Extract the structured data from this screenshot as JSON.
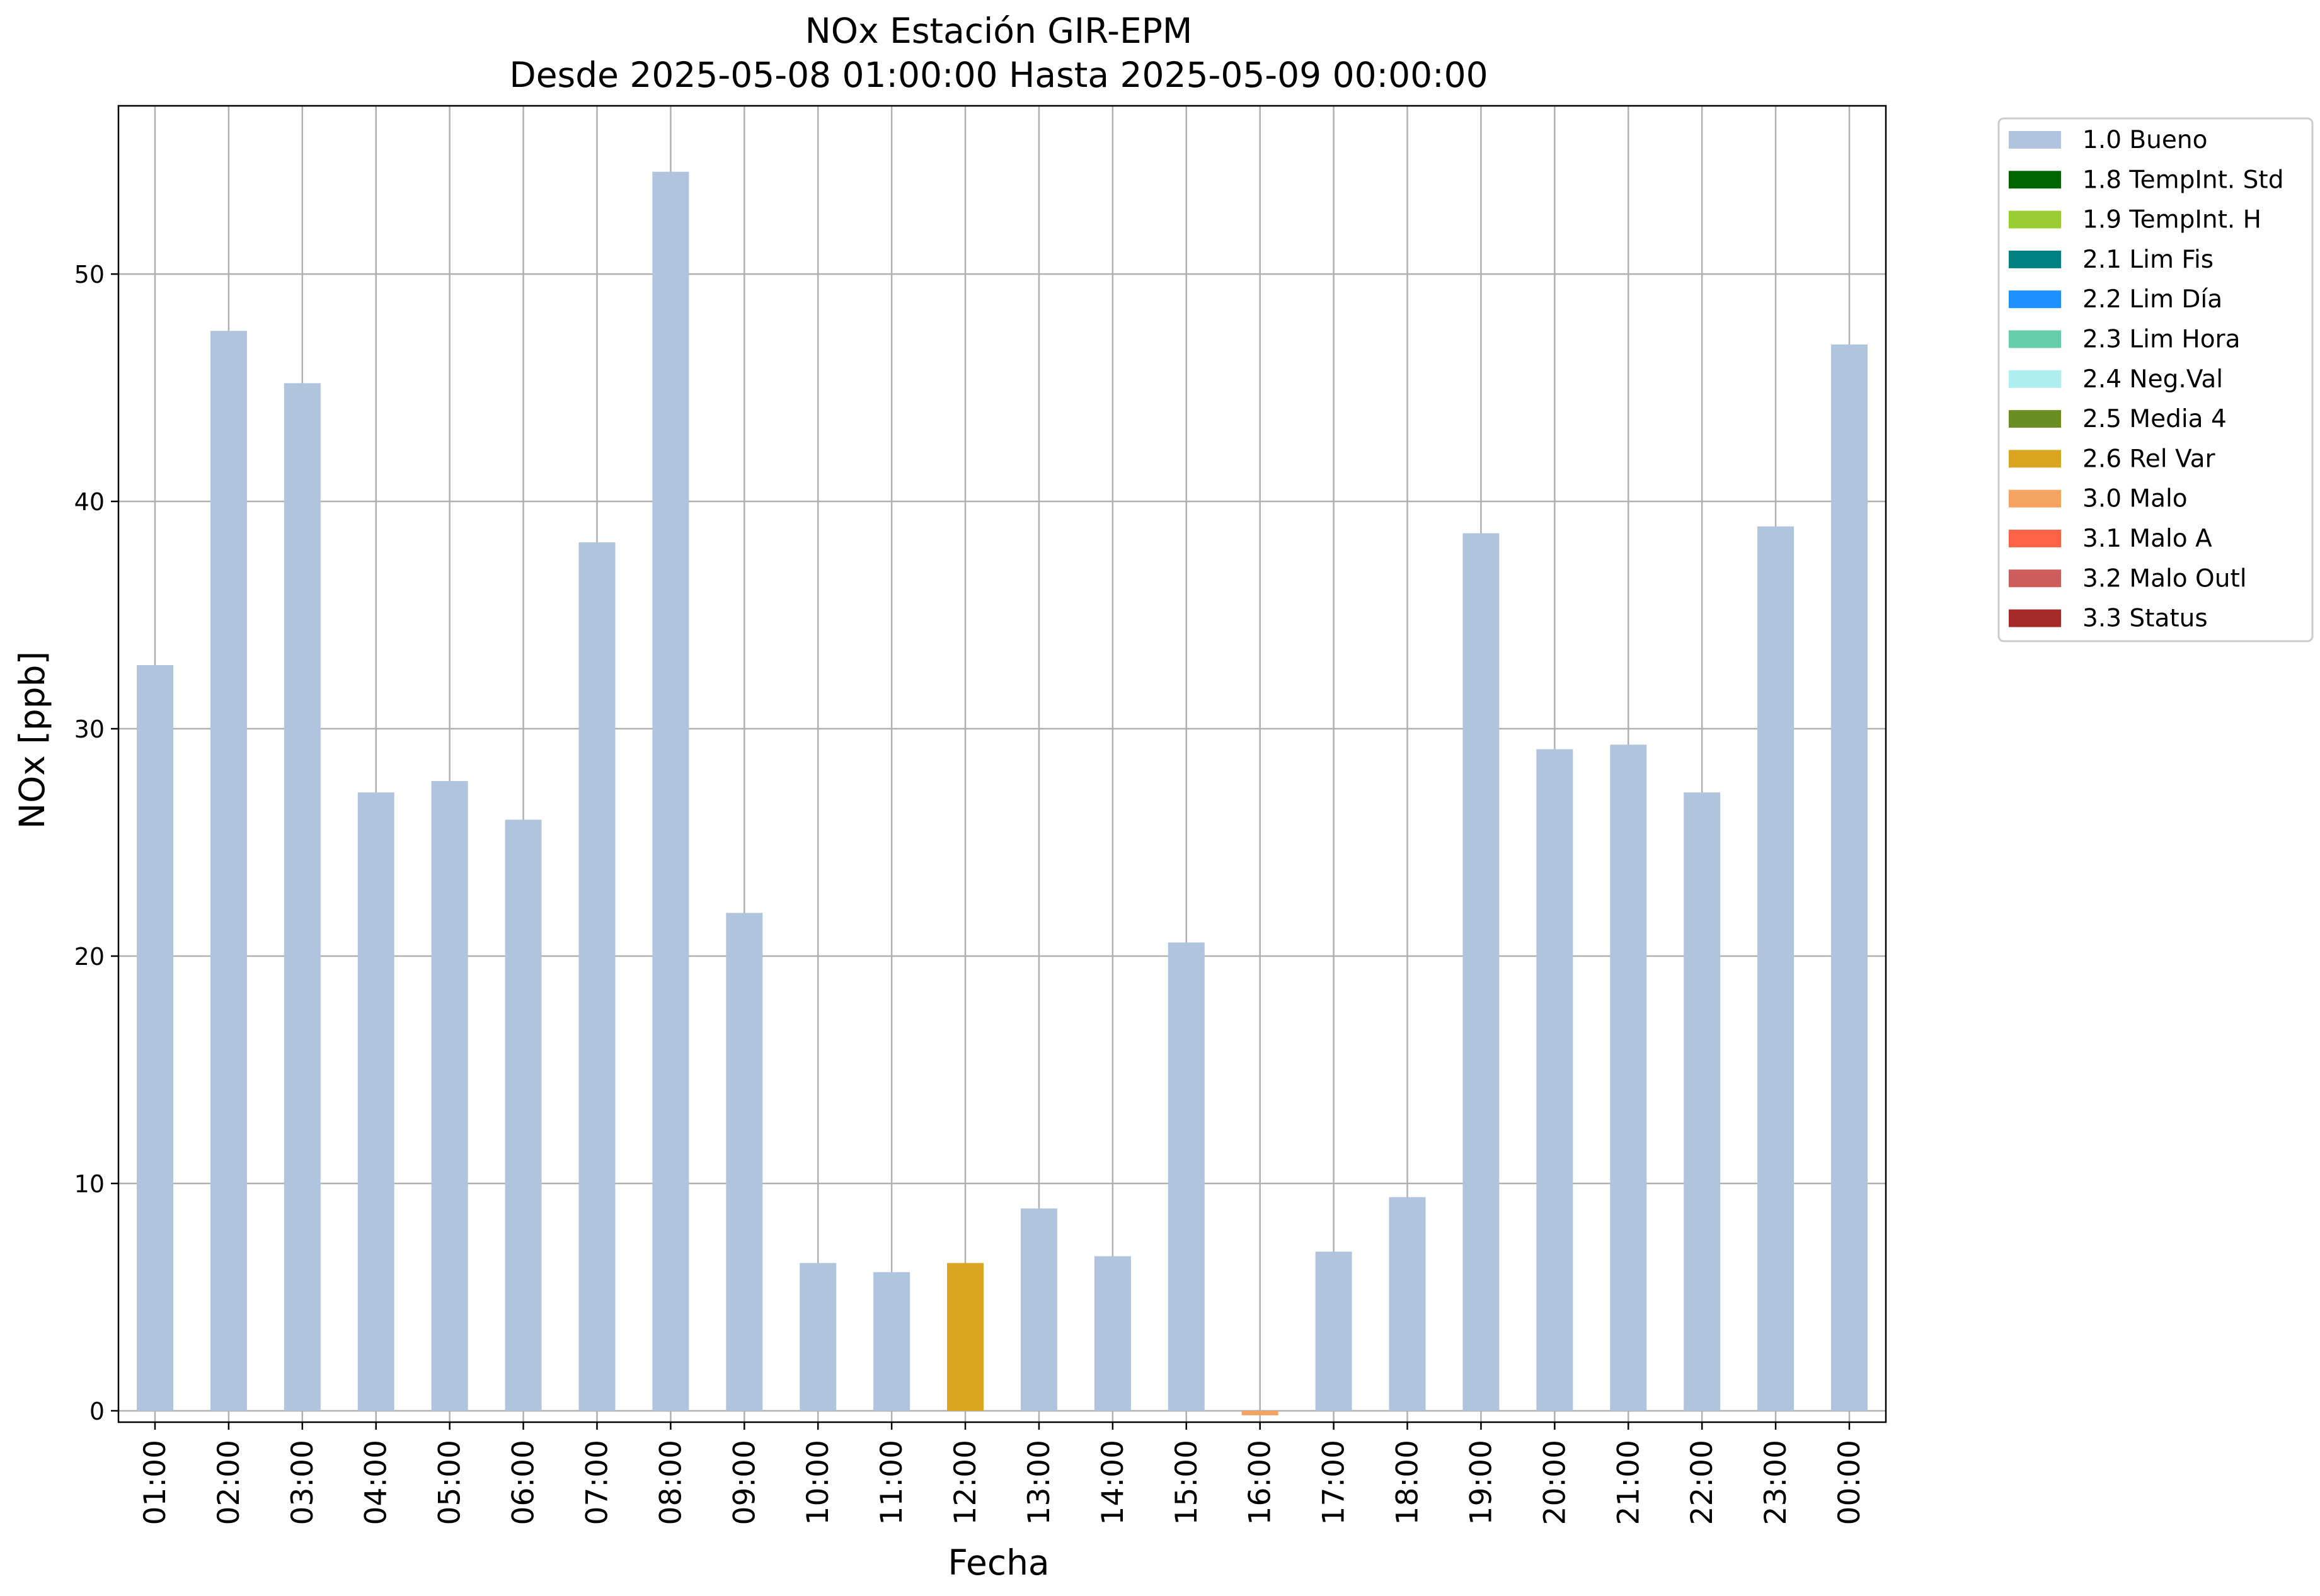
{
  "chart_data": {
    "type": "bar",
    "title": "NOx Estación GIR-EPM",
    "subtitle": "Desde 2025-05-08 01:00:00 Hasta 2025-05-09 00:00:00",
    "xlabel": "Fecha",
    "ylabel": "NOx [ppb]",
    "ylim": [
      -0.5,
      57.4
    ],
    "yticks": [
      0,
      10,
      20,
      30,
      40,
      50
    ],
    "grid": true,
    "legend_position": "outside-top-right",
    "categories": [
      "01:00",
      "02:00",
      "03:00",
      "04:00",
      "05:00",
      "06:00",
      "07:00",
      "08:00",
      "09:00",
      "10:00",
      "11:00",
      "12:00",
      "13:00",
      "14:00",
      "15:00",
      "16:00",
      "17:00",
      "18:00",
      "19:00",
      "20:00",
      "21:00",
      "22:00",
      "23:00",
      "00:00"
    ],
    "values": [
      32.8,
      47.5,
      45.2,
      27.2,
      27.7,
      26.0,
      38.2,
      54.5,
      21.9,
      6.5,
      6.1,
      6.5,
      8.9,
      6.8,
      20.6,
      -0.2,
      7.0,
      9.4,
      38.6,
      29.1,
      29.3,
      27.2,
      38.9,
      46.9
    ],
    "flags": [
      "1.0 Bueno",
      "1.0 Bueno",
      "1.0 Bueno",
      "1.0 Bueno",
      "1.0 Bueno",
      "1.0 Bueno",
      "1.0 Bueno",
      "1.0 Bueno",
      "1.0 Bueno",
      "1.0 Bueno",
      "1.0 Bueno",
      "2.6 Rel Var",
      "1.0 Bueno",
      "1.0 Bueno",
      "1.0 Bueno",
      "3.0 Malo",
      "1.0 Bueno",
      "1.0 Bueno",
      "1.0 Bueno",
      "1.0 Bueno",
      "1.0 Bueno",
      "1.0 Bueno",
      "1.0 Bueno",
      "1.0 Bueno"
    ],
    "legend": [
      {
        "label": "1.0 Bueno",
        "color": "#b0c4de"
      },
      {
        "label": "1.8 TempInt. Std",
        "color": "#006400"
      },
      {
        "label": "1.9 TempInt. H",
        "color": "#9acd32"
      },
      {
        "label": "2.1 Lim Fis",
        "color": "#008080"
      },
      {
        "label": "2.2 Lim Día",
        "color": "#1e90ff"
      },
      {
        "label": "2.3 Lim Hora",
        "color": "#66cdaa"
      },
      {
        "label": "2.4 Neg.Val",
        "color": "#afeeee"
      },
      {
        "label": "2.5 Media 4",
        "color": "#6b8e23"
      },
      {
        "label": "2.6 Rel Var",
        "color": "#daa520"
      },
      {
        "label": "3.0 Malo",
        "color": "#f4a460"
      },
      {
        "label": "3.1 Malo A",
        "color": "#ff6347"
      },
      {
        "label": "3.2 Malo Outl",
        "color": "#cd5c5c"
      },
      {
        "label": "3.3 Status",
        "color": "#a52a2a"
      }
    ]
  }
}
